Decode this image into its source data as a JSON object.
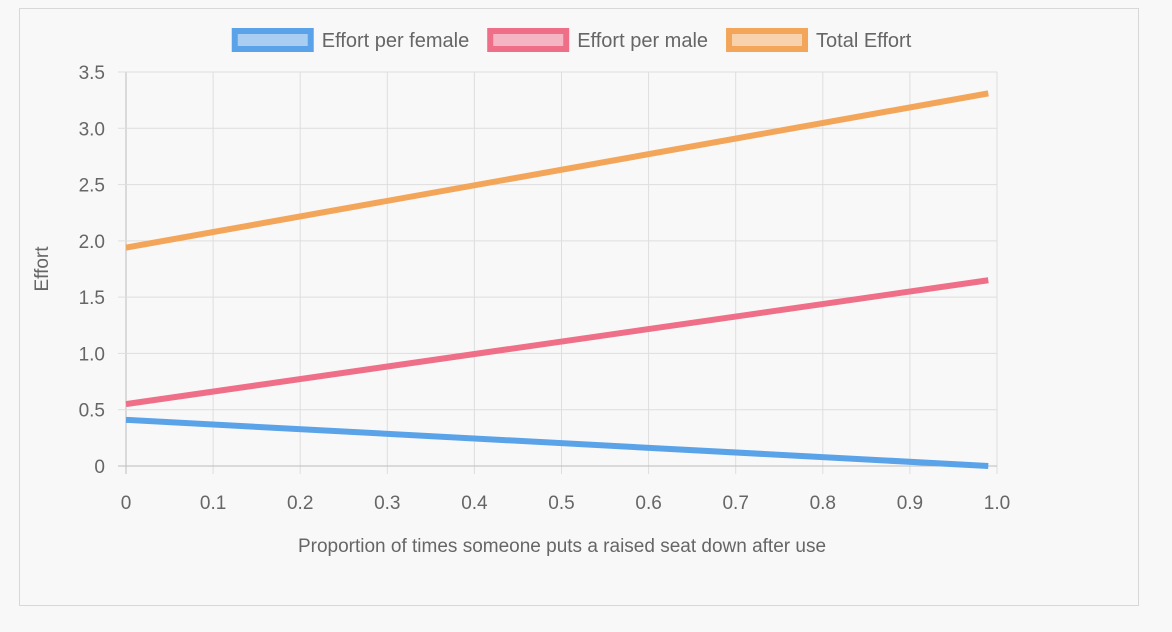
{
  "chart_data": {
    "type": "line",
    "xlabel": "Proportion of times someone puts a raised seat down after use",
    "ylabel": "Effort",
    "xlim": [
      0,
      1.0
    ],
    "ylim": [
      0,
      3.5
    ],
    "x_ticks": [
      "0",
      "0.1",
      "0.2",
      "0.3",
      "0.4",
      "0.5",
      "0.6",
      "0.7",
      "0.8",
      "0.9",
      "1.0"
    ],
    "y_ticks": [
      "0",
      "0.5",
      "1.0",
      "1.5",
      "2.0",
      "2.5",
      "3.0",
      "3.5"
    ],
    "grid": true,
    "legend_position": "top",
    "series": [
      {
        "name": "Effort per female",
        "color": "#5ba3e8",
        "fill": "#aacdf2",
        "x": [
          0,
          0.99
        ],
        "y": [
          0.41,
          0.0
        ]
      },
      {
        "name": "Effort per male",
        "color": "#ef6f88",
        "fill": "#f5b5c2",
        "x": [
          0,
          0.99
        ],
        "y": [
          0.55,
          1.65
        ]
      },
      {
        "name": "Total Effort",
        "color": "#f3a65a",
        "fill": "#f8d2ad",
        "x": [
          0,
          0.99
        ],
        "y": [
          1.94,
          3.31
        ]
      }
    ]
  }
}
